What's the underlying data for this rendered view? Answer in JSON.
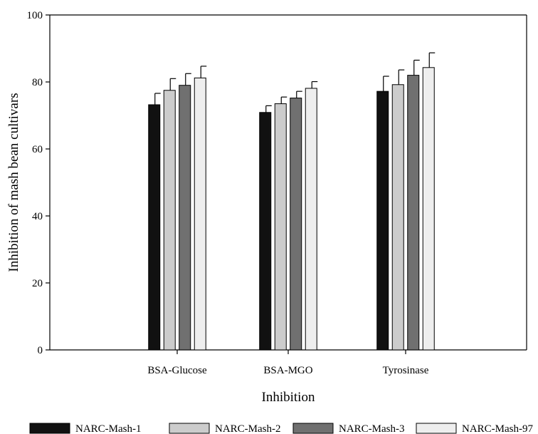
{
  "chart_data": {
    "type": "bar",
    "title": "",
    "xlabel": "Inhibition",
    "ylabel": "Inhibition of mash bean cultivars",
    "ylim": [
      0,
      100
    ],
    "yticks": [
      "0",
      "20",
      "40",
      "60",
      "80",
      "100"
    ],
    "categories": [
      "BSA-Glucose",
      "BSA-MGO",
      "Tyrosinase"
    ],
    "series": [
      {
        "name": "NARC-Mash-1",
        "color": "#111111",
        "values": [
          73.2,
          70.9,
          77.2
        ],
        "errors": [
          3.4,
          2.0,
          4.5
        ]
      },
      {
        "name": "NARC-Mash-2",
        "color": "#cccccc",
        "values": [
          77.5,
          73.5,
          79.2
        ],
        "errors": [
          3.5,
          2.0,
          4.4
        ]
      },
      {
        "name": "NARC-Mash-3",
        "color": "#707070",
        "values": [
          79.0,
          75.2,
          82.0
        ],
        "errors": [
          3.5,
          2.0,
          4.5
        ]
      },
      {
        "name": "NARC-Mash-97",
        "color": "#eeeeee",
        "values": [
          81.2,
          78.1,
          84.3
        ],
        "errors": [
          3.5,
          2.0,
          4.4
        ]
      }
    ],
    "error_bars": true,
    "grid": false,
    "legend_position": "bottom"
  }
}
